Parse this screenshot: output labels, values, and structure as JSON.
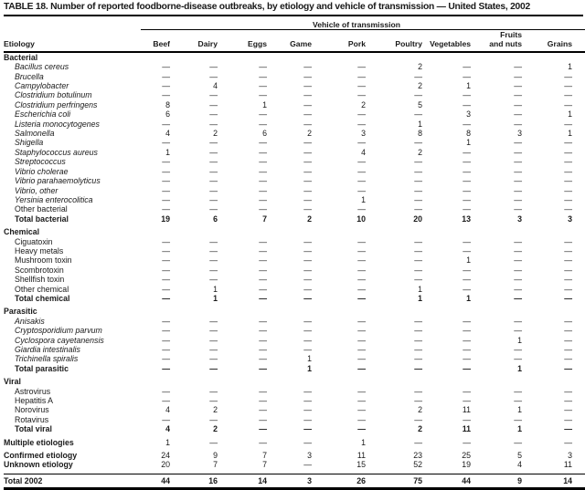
{
  "title": "TABLE 18. Number of reported foodborne-disease outbreaks, by etiology and vehicle of transmission — United States, 2002",
  "table": {
    "span_header": "Vehicle of transmission",
    "row_header": "Etiology",
    "columns": [
      "Beef",
      "Dairy",
      "Eggs",
      "Game",
      "Pork",
      "Poultry",
      "Vegetables",
      "Fruits\nand nuts",
      "Grains"
    ],
    "dash": "—",
    "sections": [
      {
        "label": "Bacterial",
        "rows": [
          {
            "label": "Bacillus cereus",
            "italic": true,
            "values": [
              "—",
              "—",
              "—",
              "—",
              "—",
              "2",
              "—",
              "—",
              "1"
            ]
          },
          {
            "label": "Brucella",
            "italic": true,
            "values": [
              "—",
              "—",
              "—",
              "—",
              "—",
              "—",
              "—",
              "—",
              "—"
            ]
          },
          {
            "label": "Campylobacter",
            "italic": true,
            "values": [
              "—",
              "4",
              "—",
              "—",
              "—",
              "2",
              "1",
              "—",
              "—"
            ]
          },
          {
            "label": "Clostridium botulinum",
            "italic": true,
            "values": [
              "—",
              "—",
              "—",
              "—",
              "—",
              "—",
              "—",
              "—",
              "—"
            ]
          },
          {
            "label": "Clostridium perfringens",
            "italic": true,
            "values": [
              "8",
              "—",
              "1",
              "—",
              "2",
              "5",
              "—",
              "—",
              "—"
            ]
          },
          {
            "label": "Escherichia coli",
            "italic": true,
            "values": [
              "6",
              "—",
              "—",
              "—",
              "—",
              "—",
              "3",
              "—",
              "1"
            ]
          },
          {
            "label": "Listeria monocytogenes",
            "italic": true,
            "values": [
              "—",
              "—",
              "—",
              "—",
              "—",
              "1",
              "—",
              "—",
              "—"
            ]
          },
          {
            "label": "Salmonella",
            "italic": true,
            "values": [
              "4",
              "2",
              "6",
              "2",
              "3",
              "8",
              "8",
              "3",
              "1"
            ]
          },
          {
            "label": "Shigella",
            "italic": true,
            "values": [
              "—",
              "—",
              "—",
              "—",
              "—",
              "—",
              "1",
              "—",
              "—"
            ]
          },
          {
            "label": "Staphylococcus aureus",
            "italic": true,
            "values": [
              "1",
              "—",
              "—",
              "—",
              "4",
              "2",
              "—",
              "—",
              "—"
            ]
          },
          {
            "label": "Streptococcus",
            "italic": true,
            "values": [
              "—",
              "—",
              "—",
              "—",
              "—",
              "—",
              "—",
              "—",
              "—"
            ]
          },
          {
            "label": "Vibrio cholerae",
            "italic": true,
            "values": [
              "—",
              "—",
              "—",
              "—",
              "—",
              "—",
              "—",
              "—",
              "—"
            ]
          },
          {
            "label": "Vibrio parahaemolyticus",
            "italic": true,
            "values": [
              "—",
              "—",
              "—",
              "—",
              "—",
              "—",
              "—",
              "—",
              "—"
            ]
          },
          {
            "label": "Vibrio, other",
            "italic": true,
            "values": [
              "—",
              "—",
              "—",
              "—",
              "—",
              "—",
              "—",
              "—",
              "—"
            ]
          },
          {
            "label": "Yersinia enterocolitica",
            "italic": true,
            "values": [
              "—",
              "—",
              "—",
              "—",
              "1",
              "—",
              "—",
              "—",
              "—"
            ]
          },
          {
            "label": "Other bacterial",
            "italic": false,
            "values": [
              "—",
              "—",
              "—",
              "—",
              "—",
              "—",
              "—",
              "—",
              "—"
            ]
          },
          {
            "label": "Total bacterial",
            "total": true,
            "values": [
              "19",
              "6",
              "7",
              "2",
              "10",
              "20",
              "13",
              "3",
              "3"
            ]
          }
        ]
      },
      {
        "label": "Chemical",
        "rows": [
          {
            "label": "Ciguatoxin",
            "italic": false,
            "values": [
              "—",
              "—",
              "—",
              "—",
              "—",
              "—",
              "—",
              "—",
              "—"
            ]
          },
          {
            "label": "Heavy metals",
            "italic": false,
            "values": [
              "—",
              "—",
              "—",
              "—",
              "—",
              "—",
              "—",
              "—",
              "—"
            ]
          },
          {
            "label": "Mushroom toxin",
            "italic": false,
            "values": [
              "—",
              "—",
              "—",
              "—",
              "—",
              "—",
              "1",
              "—",
              "—"
            ]
          },
          {
            "label": "Scombrotoxin",
            "italic": false,
            "values": [
              "—",
              "—",
              "—",
              "—",
              "—",
              "—",
              "—",
              "—",
              "—"
            ]
          },
          {
            "label": "Shellfish toxin",
            "italic": false,
            "values": [
              "—",
              "—",
              "—",
              "—",
              "—",
              "—",
              "—",
              "—",
              "—"
            ]
          },
          {
            "label": "Other chemical",
            "italic": false,
            "values": [
              "—",
              "1",
              "—",
              "—",
              "—",
              "1",
              "—",
              "—",
              "—"
            ]
          },
          {
            "label": "Total chemical",
            "total": true,
            "values": [
              "—",
              "1",
              "—",
              "—",
              "—",
              "1",
              "1",
              "—",
              "—"
            ]
          }
        ]
      },
      {
        "label": "Parasitic",
        "rows": [
          {
            "label": "Anisakis",
            "italic": true,
            "values": [
              "—",
              "—",
              "—",
              "—",
              "—",
              "—",
              "—",
              "—",
              "—"
            ]
          },
          {
            "label": "Cryptosporidium parvum",
            "italic": true,
            "values": [
              "—",
              "—",
              "—",
              "—",
              "—",
              "—",
              "—",
              "—",
              "—"
            ]
          },
          {
            "label": "Cyclospora cayetanensis",
            "italic": true,
            "values": [
              "—",
              "—",
              "—",
              "—",
              "—",
              "—",
              "—",
              "1",
              "—"
            ]
          },
          {
            "label": "Giardia intestinalis",
            "italic": true,
            "values": [
              "—",
              "—",
              "—",
              "—",
              "—",
              "—",
              "—",
              "—",
              "—"
            ]
          },
          {
            "label": "Trichinella spiralis",
            "italic": true,
            "values": [
              "—",
              "—",
              "—",
              "1",
              "—",
              "—",
              "—",
              "—",
              "—"
            ]
          },
          {
            "label": "Total parasitic",
            "total": true,
            "values": [
              "—",
              "—",
              "—",
              "1",
              "—",
              "—",
              "—",
              "1",
              "—"
            ]
          }
        ]
      },
      {
        "label": "Viral",
        "rows": [
          {
            "label": "Astrovirus",
            "italic": false,
            "values": [
              "—",
              "—",
              "—",
              "—",
              "—",
              "—",
              "—",
              "—",
              "—"
            ]
          },
          {
            "label": "Hepatitis A",
            "italic": false,
            "values": [
              "—",
              "—",
              "—",
              "—",
              "—",
              "—",
              "—",
              "—",
              "—"
            ]
          },
          {
            "label": "Norovirus",
            "italic": false,
            "values": [
              "4",
              "2",
              "—",
              "—",
              "—",
              "2",
              "11",
              "1",
              "—"
            ]
          },
          {
            "label": "Rotavirus",
            "italic": false,
            "values": [
              "—",
              "—",
              "—",
              "—",
              "—",
              "—",
              "—",
              "—",
              "—"
            ]
          },
          {
            "label": "Total viral",
            "total": true,
            "values": [
              "4",
              "2",
              "—",
              "—",
              "—",
              "2",
              "11",
              "1",
              "—"
            ]
          }
        ]
      }
    ],
    "summary_rows": [
      {
        "label": "Multiple etiologies",
        "gap_before": false,
        "bold_values": false,
        "total_rule": false,
        "values": [
          "1",
          "—",
          "—",
          "—",
          "1",
          "—",
          "—",
          "—",
          "—"
        ]
      },
      {
        "label": "Confirmed etiology",
        "gap_before": true,
        "bold_values": false,
        "total_rule": false,
        "values": [
          "24",
          "9",
          "7",
          "3",
          "11",
          "23",
          "25",
          "5",
          "3"
        ]
      },
      {
        "label": "Unknown etiology",
        "gap_before": false,
        "bold_values": false,
        "total_rule": false,
        "values": [
          "20",
          "7",
          "7",
          "—",
          "15",
          "52",
          "19",
          "4",
          "11"
        ]
      },
      {
        "label": "Total 2002",
        "gap_before": true,
        "bold_values": true,
        "total_rule": true,
        "values": [
          "44",
          "16",
          "14",
          "3",
          "26",
          "75",
          "44",
          "9",
          "14"
        ]
      }
    ]
  }
}
